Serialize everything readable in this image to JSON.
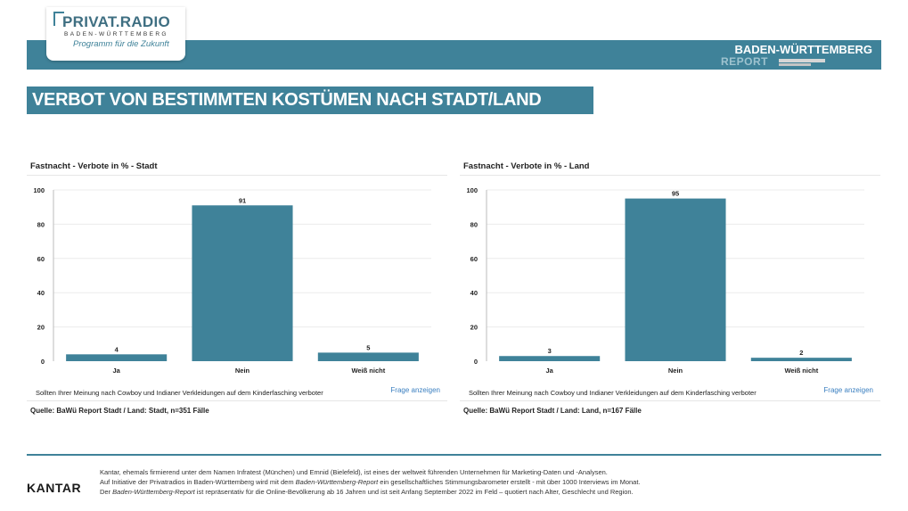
{
  "header": {
    "logo_name": "PRIVAT.RADIO",
    "logo_sub": "BADEN-WÜRTTEMBERG",
    "logo_slogan": "Programm für die Zukunft",
    "report_title": "BADEN-WÜRTTEMBERG",
    "report_sub": "REPORT"
  },
  "headline": "VERBOT VON BESTIMMTEN KOSTÜMEN NACH STADT/LAND",
  "panels": [
    {
      "title": "Fastnacht - Verbote in % - Stadt",
      "question": "Sollten Ihrer Meinung nach Cowboy und Indianer Verkleidungen auf dem Kinderfasching verboter",
      "link": "Frage anzeigen",
      "source": "Quelle: BaWü Report Stadt / Land: Stadt, n=351 Fälle"
    },
    {
      "title": "Fastnacht - Verbote in % - Land",
      "question": "Sollten Ihrer Meinung nach Cowboy und Indianer Verkleidungen auf dem Kinderfasching verboter",
      "link": "Frage anzeigen",
      "source": "Quelle: BaWü Report Stadt / Land: Land, n=167 Fälle"
    }
  ],
  "chart_data": [
    {
      "type": "bar",
      "title": "Fastnacht - Verbote in % - Stadt",
      "categories": [
        "Ja",
        "Nein",
        "Weiß nicht"
      ],
      "values": [
        4,
        91,
        5
      ],
      "ylim": [
        0,
        100
      ],
      "yticks": [
        0,
        20,
        40,
        60,
        80,
        100
      ],
      "color": "#3f8299"
    },
    {
      "type": "bar",
      "title": "Fastnacht - Verbote in % - Land",
      "categories": [
        "Ja",
        "Nein",
        "Weiß nicht"
      ],
      "values": [
        3,
        95,
        2
      ],
      "ylim": [
        0,
        100
      ],
      "yticks": [
        0,
        20,
        40,
        60,
        80,
        100
      ],
      "color": "#3f8299"
    }
  ],
  "footer": {
    "brand": "KANTAR",
    "line1": "Kantar, ehemals firmierend unter dem Namen Infratest (München) und Emnid  (Bielefeld), ist eines der weltweit führenden Unternehmen für Marketing-Daten und -Analysen.",
    "line2_a": "Auf Initiative der Privatradios in Baden-Württemberg wird mit dem ",
    "line2_b": "Baden-Württemberg-Report",
    "line2_c": " ein gesellschaftliches Stimmungsbarometer erstellt - mit über 1000 Interviews im Monat.",
    "line3_a": "Der ",
    "line3_b": "Baden-Württemberg-Report",
    "line3_c": " ist repräsentativ für die Online-Bevölkerung ab 16 Jahren und ist seit Anfang September 2022 im Feld – quotiert nach Alter, Geschlecht und Region."
  }
}
